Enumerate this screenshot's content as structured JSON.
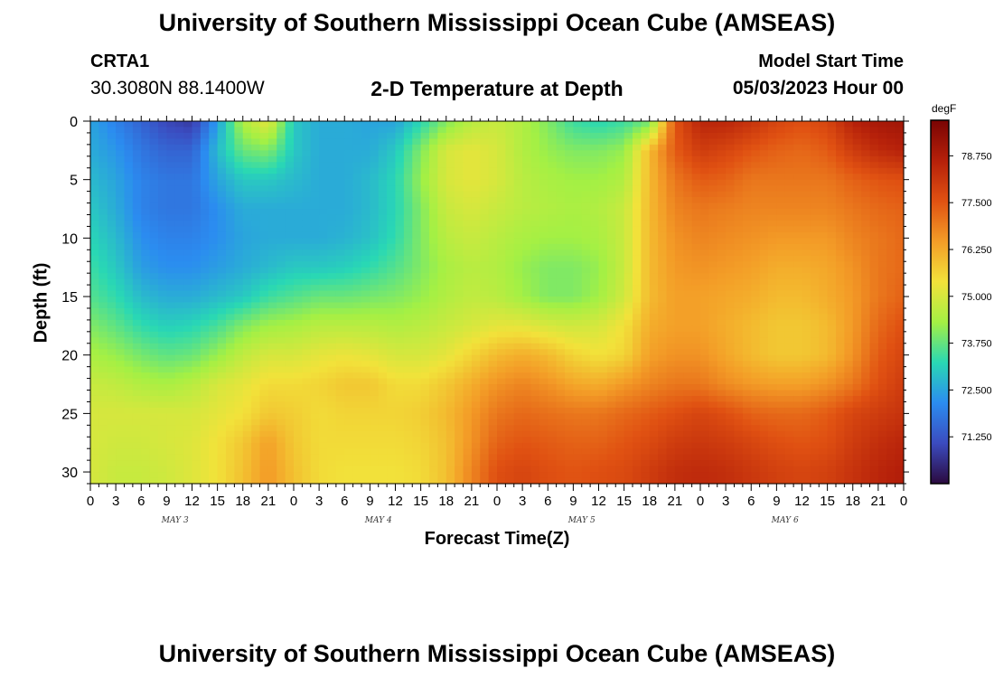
{
  "header": {
    "title": "University of Southern Mississippi Ocean Cube (AMSEAS)",
    "station_id": "CRTA1",
    "station_coords": "30.3080N  88.1400W",
    "model_start_label": "Model Start Time",
    "model_start_value": "05/03/2023 Hour 00",
    "plot_title": "2-D Temperature at Depth"
  },
  "footer": {
    "title": "University of Southern Mississippi Ocean Cube (AMSEAS)"
  },
  "chart_data": {
    "type": "heatmap",
    "title": "2-D Temperature at Depth",
    "xlabel": "Forecast Time(Z)",
    "ylabel": "Depth (ft)",
    "colorbar_unit": "degF",
    "colorbar_ticks": [
      "78.750",
      "77.500",
      "76.250",
      "75.000",
      "73.750",
      "72.500",
      "71.250"
    ],
    "colorbar_values": [
      78.75,
      77.5,
      76.25,
      75.0,
      73.75,
      72.5,
      71.25
    ],
    "color_range": [
      70.0,
      79.7
    ],
    "colormap": [
      "#2b0a3e",
      "#3b4bbf",
      "#2b8cf0",
      "#29d8b4",
      "#a4f044",
      "#f2e23a",
      "#f39c27",
      "#e05112",
      "#b5200a",
      "#7a0403"
    ],
    "ylim": [
      0,
      31
    ],
    "y_reversed": true,
    "y_ticks": [
      0,
      5,
      10,
      15,
      20,
      25,
      30
    ],
    "x_range_hours": [
      0,
      96
    ],
    "x_tick_labels": [
      "0",
      "3",
      "6",
      "9",
      "12",
      "15",
      "18",
      "21",
      "0",
      "3",
      "6",
      "9",
      "12",
      "15",
      "18",
      "21",
      "0",
      "3",
      "6",
      "9",
      "12",
      "15",
      "18",
      "21",
      "0",
      "3",
      "6",
      "9",
      "12",
      "15",
      "18",
      "21",
      "0"
    ],
    "date_labels": [
      "MAY 3",
      "MAY 4",
      "MAY 5",
      "MAY 6"
    ],
    "x_hours": [
      0,
      3,
      6,
      9,
      12,
      15,
      18,
      21,
      24,
      27,
      30,
      33,
      36,
      39,
      42,
      45,
      48,
      51,
      54,
      57,
      60,
      63,
      66,
      69,
      72,
      75,
      78,
      81,
      84,
      87,
      90,
      93,
      96
    ],
    "depth_ft": [
      0,
      2.5,
      5,
      7.5,
      10,
      12.5,
      15,
      17.5,
      20,
      22.5,
      25,
      27.5,
      30
    ],
    "values": [
      [
        72.5,
        72.0,
        71.5,
        71.0,
        70.8,
        72.4,
        74.5,
        75.2,
        73.0,
        72.6,
        72.6,
        72.5,
        72.5,
        73.2,
        74.0,
        74.6,
        74.8,
        74.5,
        74.0,
        73.4,
        73.2,
        73.4,
        73.8,
        77.5,
        78.5,
        78.5,
        78.2,
        77.8,
        77.6,
        77.8,
        78.6,
        78.9,
        79.0
      ],
      [
        72.6,
        72.3,
        71.8,
        71.5,
        71.5,
        72.8,
        73.8,
        74.0,
        73.0,
        72.6,
        72.6,
        72.6,
        73.0,
        74.0,
        75.0,
        75.2,
        75.0,
        74.5,
        74.2,
        74.0,
        74.0,
        74.2,
        76.0,
        77.4,
        78.0,
        77.8,
        77.5,
        77.3,
        77.2,
        77.4,
        78.0,
        78.4,
        78.6
      ],
      [
        72.8,
        72.5,
        72.0,
        71.8,
        71.8,
        72.5,
        73.0,
        73.0,
        72.8,
        72.6,
        72.6,
        72.8,
        73.2,
        74.2,
        75.0,
        75.2,
        75.0,
        74.6,
        74.4,
        74.3,
        74.3,
        74.5,
        76.0,
        77.0,
        77.4,
        77.3,
        77.0,
        77.0,
        77.0,
        77.0,
        77.3,
        77.5,
        77.6
      ],
      [
        73.0,
        72.6,
        72.0,
        71.8,
        71.8,
        72.2,
        72.6,
        72.6,
        72.6,
        72.6,
        72.6,
        72.8,
        73.2,
        74.0,
        74.8,
        75.0,
        74.8,
        74.6,
        74.5,
        74.4,
        74.5,
        74.8,
        76.0,
        76.8,
        77.0,
        76.9,
        76.8,
        76.8,
        76.8,
        76.8,
        77.0,
        77.2,
        77.3
      ],
      [
        73.2,
        72.8,
        72.2,
        72.0,
        72.0,
        72.2,
        72.5,
        72.6,
        72.6,
        72.6,
        72.7,
        72.9,
        73.3,
        74.0,
        74.6,
        74.8,
        74.6,
        74.4,
        74.3,
        74.3,
        74.4,
        74.8,
        76.0,
        76.6,
        76.8,
        76.7,
        76.6,
        76.5,
        76.5,
        76.5,
        76.8,
        77.0,
        77.2
      ],
      [
        73.4,
        73.0,
        72.4,
        72.2,
        72.2,
        72.4,
        72.6,
        72.8,
        73.0,
        73.0,
        73.1,
        73.3,
        73.6,
        74.0,
        74.4,
        74.6,
        74.5,
        74.2,
        74.0,
        74.0,
        74.2,
        74.8,
        76.0,
        76.5,
        76.6,
        76.5,
        76.4,
        76.2,
        76.2,
        76.3,
        76.6,
        77.0,
        77.2
      ],
      [
        73.6,
        73.3,
        72.8,
        72.6,
        72.6,
        72.8,
        73.0,
        73.4,
        73.6,
        73.8,
        73.8,
        73.9,
        74.0,
        74.2,
        74.5,
        74.7,
        74.6,
        74.3,
        74.0,
        74.0,
        74.3,
        74.9,
        76.0,
        76.4,
        76.4,
        76.3,
        76.2,
        76.0,
        76.0,
        76.2,
        76.5,
        77.0,
        77.3
      ],
      [
        74.0,
        73.7,
        73.3,
        73.1,
        73.2,
        73.5,
        74.0,
        74.3,
        74.4,
        74.6,
        74.6,
        74.6,
        74.5,
        74.6,
        74.8,
        75.0,
        75.2,
        75.2,
        75.0,
        74.9,
        75.0,
        75.4,
        76.2,
        76.4,
        76.4,
        76.2,
        76.0,
        75.8,
        75.8,
        76.0,
        76.5,
        77.2,
        77.6
      ],
      [
        74.4,
        74.2,
        73.9,
        73.7,
        73.8,
        74.2,
        74.7,
        75.0,
        75.0,
        75.2,
        75.3,
        75.2,
        75.0,
        75.0,
        75.2,
        75.6,
        76.0,
        76.2,
        76.0,
        75.6,
        75.4,
        75.6,
        76.4,
        76.6,
        76.6,
        76.3,
        76.0,
        75.8,
        75.8,
        76.0,
        76.6,
        77.4,
        77.8
      ],
      [
        74.8,
        74.7,
        74.5,
        74.4,
        74.6,
        75.0,
        75.2,
        75.5,
        75.5,
        75.6,
        75.8,
        75.8,
        75.5,
        75.5,
        75.8,
        76.2,
        76.6,
        76.8,
        76.6,
        76.3,
        76.2,
        76.5,
        76.8,
        77.0,
        77.0,
        76.7,
        76.5,
        76.4,
        76.4,
        76.6,
        77.0,
        77.6,
        78.0
      ],
      [
        75.0,
        75.0,
        75.0,
        75.0,
        75.0,
        75.2,
        75.4,
        75.8,
        75.7,
        75.5,
        75.6,
        75.6,
        75.6,
        75.7,
        76.0,
        76.5,
        77.0,
        77.2,
        77.1,
        77.0,
        77.0,
        77.2,
        77.4,
        77.6,
        77.8,
        77.6,
        77.3,
        77.2,
        77.2,
        77.4,
        77.8,
        78.0,
        78.2
      ],
      [
        75.0,
        74.9,
        74.9,
        75.0,
        75.1,
        75.4,
        75.8,
        76.4,
        75.8,
        75.5,
        75.5,
        75.5,
        75.5,
        75.6,
        75.9,
        76.6,
        77.3,
        77.5,
        77.4,
        77.3,
        77.3,
        77.5,
        77.7,
        78.0,
        78.1,
        78.0,
        77.8,
        77.6,
        77.5,
        77.6,
        78.0,
        78.3,
        78.5
      ],
      [
        75.0,
        74.8,
        74.8,
        74.9,
        75.1,
        75.4,
        75.9,
        76.5,
        75.9,
        75.5,
        75.4,
        75.4,
        75.4,
        75.5,
        75.9,
        76.8,
        77.6,
        77.8,
        77.6,
        77.5,
        77.6,
        77.7,
        78.0,
        78.3,
        78.4,
        78.3,
        78.1,
        77.9,
        77.8,
        77.9,
        78.2,
        78.5,
        78.7
      ]
    ]
  }
}
